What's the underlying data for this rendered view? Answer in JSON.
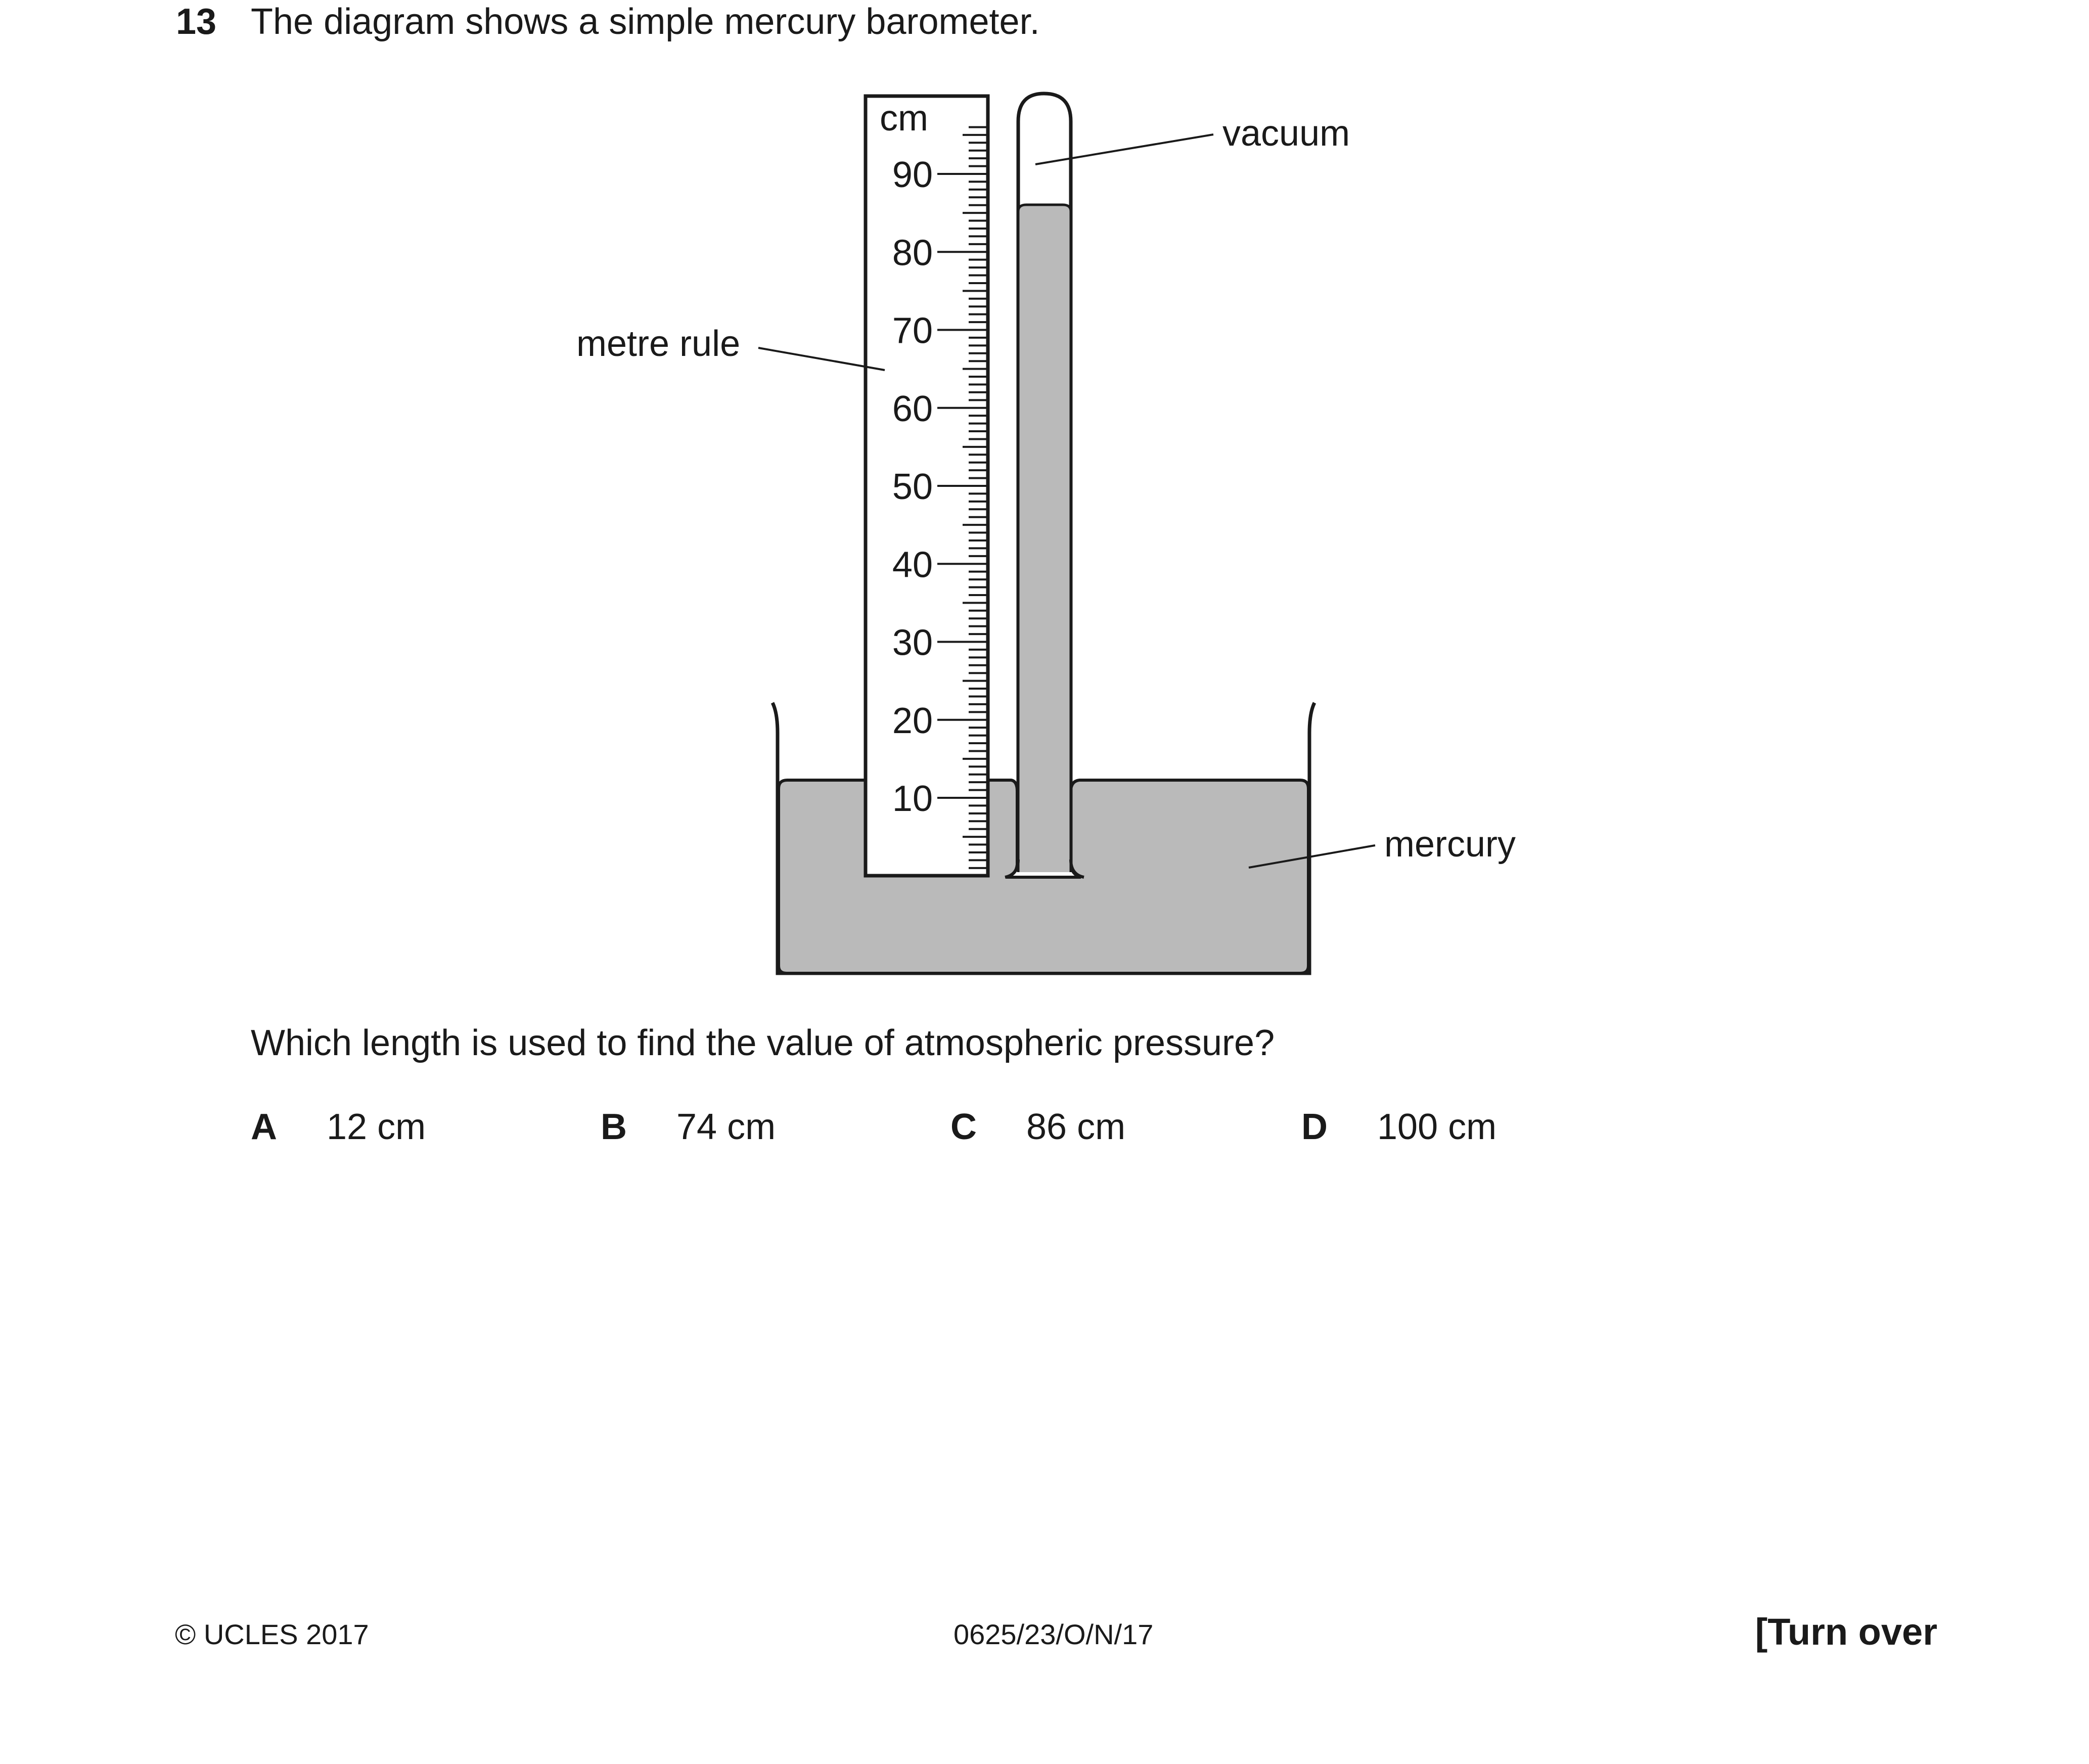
{
  "question": {
    "number": "13",
    "text": "The diagram shows a simple mercury barometer.",
    "prompt": "Which length is used to find the value of atmospheric pressure?"
  },
  "diagram": {
    "labels": {
      "vacuum": "vacuum",
      "metre_rule": "metre rule",
      "mercury": "mercury",
      "unit": "cm"
    },
    "scale_numbers": [
      "90",
      "80",
      "70",
      "60",
      "50",
      "40",
      "30",
      "20",
      "10"
    ],
    "colors": {
      "mercury": "#bababa",
      "outline": "#1a1a1a"
    }
  },
  "options": [
    {
      "letter": "A",
      "value": "12 cm"
    },
    {
      "letter": "B",
      "value": "74 cm"
    },
    {
      "letter": "C",
      "value": "86 cm"
    },
    {
      "letter": "D",
      "value": "100 cm"
    }
  ],
  "footer": {
    "copyright": "© UCLES 2017",
    "code": "0625/23/O/N/17",
    "turn_over": "[Turn over"
  }
}
